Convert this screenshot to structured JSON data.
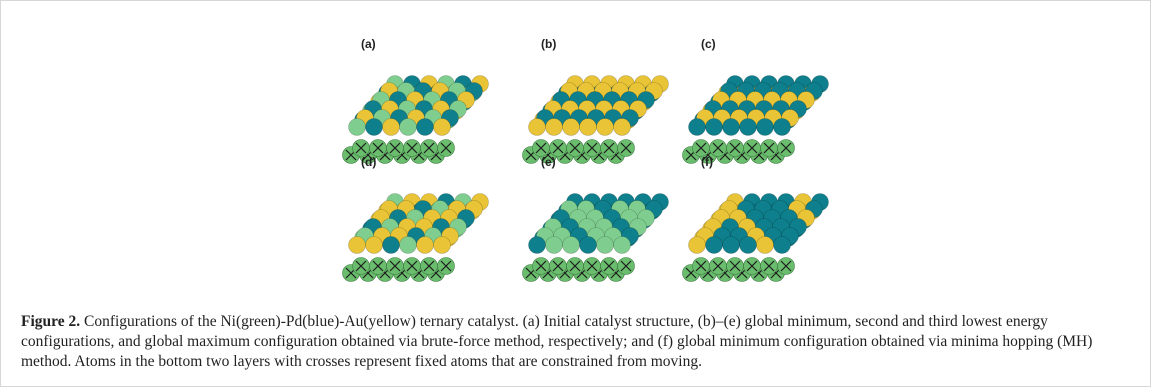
{
  "figure": {
    "panels": [
      {
        "label": "(a)",
        "pattern": "mixed"
      },
      {
        "label": "(b)",
        "pattern": "rows-yellow-top"
      },
      {
        "label": "(c)",
        "pattern": "rows-blue-top"
      },
      {
        "label": "(d)",
        "pattern": "mixed-yellow"
      },
      {
        "label": "(e)",
        "pattern": "green-top"
      },
      {
        "label": "(f)",
        "pattern": "blue-top-yellow-edge"
      }
    ],
    "colors": {
      "ni_green": "#7fce8f",
      "pd_blue": "#0e7f8c",
      "au_yellow": "#e9c436",
      "fixed_layer": "#6bbd6e",
      "cross": "#1d1d1d"
    }
  },
  "caption": {
    "label": "Figure 2.",
    "text": "Configurations of the Ni(green)-Pd(blue)-Au(yellow) ternary catalyst. (a) Initial catalyst structure, (b)–(e) global minimum, second and third lowest energy configurations, and global maximum configuration obtained via brute-force method, respectively; and (f) global minimum configuration obtained via minima hopping (MH) method. Atoms in the bottom two layers with crosses represent fixed atoms that are constrained from moving."
  }
}
